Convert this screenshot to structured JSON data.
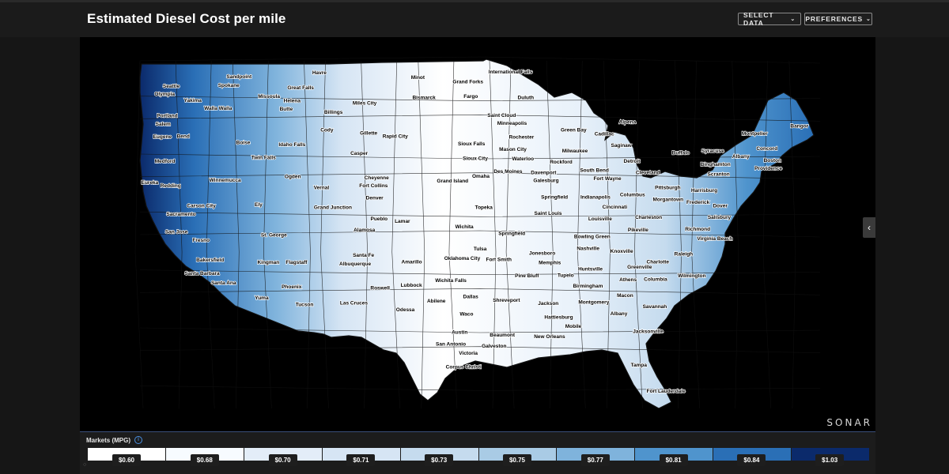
{
  "header": {
    "title": "Estimated Diesel Cost per mile",
    "select_data_label": "SELECT DATA",
    "preferences_label": "PREFERENCES",
    "chevron_icon": "chevron-down-icon"
  },
  "map": {
    "brand": "SONAR",
    "side_toggle_icon": "chevron-left-icon",
    "land_color_low": "#ffffff",
    "land_color_high": "#0a2a6c",
    "border_color": "#111111",
    "cities": [
      {
        "name": "Havre",
        "lon": -109.7,
        "lat": 48.55
      },
      {
        "name": "International Falls",
        "lon": -93.4,
        "lat": 48.6
      },
      {
        "name": "Minot",
        "lon": -101.3,
        "lat": 48.23
      },
      {
        "name": "Grand Forks",
        "lon": -97.03,
        "lat": 47.92
      },
      {
        "name": "Sandpoint",
        "lon": -116.55,
        "lat": 48.27
      },
      {
        "name": "Seattle",
        "lon": -122.33,
        "lat": 47.61
      },
      {
        "name": "Olympia",
        "lon": -122.9,
        "lat": 47.04
      },
      {
        "name": "Spokane",
        "lon": -117.43,
        "lat": 47.66
      },
      {
        "name": "Great Falls",
        "lon": -111.3,
        "lat": 47.5
      },
      {
        "name": "Bismarck",
        "lon": -100.78,
        "lat": 46.81
      },
      {
        "name": "Fargo",
        "lon": -96.79,
        "lat": 46.88
      },
      {
        "name": "Duluth",
        "lon": -92.1,
        "lat": 46.79
      },
      {
        "name": "Missoula",
        "lon": -114.0,
        "lat": 46.87
      },
      {
        "name": "Helena",
        "lon": -112.03,
        "lat": 46.59
      },
      {
        "name": "Yakima",
        "lon": -120.5,
        "lat": 46.6
      },
      {
        "name": "Walla Walla",
        "lon": -118.34,
        "lat": 46.06
      },
      {
        "name": "Miles City",
        "lon": -105.84,
        "lat": 46.41
      },
      {
        "name": "Butte",
        "lon": -112.53,
        "lat": 46.0
      },
      {
        "name": "Portland",
        "lon": -122.68,
        "lat": 45.52
      },
      {
        "name": "Salem",
        "lon": -123.03,
        "lat": 44.94
      },
      {
        "name": "Billings",
        "lon": -108.5,
        "lat": 45.78
      },
      {
        "name": "Saint Cloud",
        "lon": -94.16,
        "lat": 45.56
      },
      {
        "name": "Minneapolis",
        "lon": -93.27,
        "lat": 44.98
      },
      {
        "name": "Alpena",
        "lon": -83.43,
        "lat": 45.06
      },
      {
        "name": "Bangor",
        "lon": -68.77,
        "lat": 44.8
      },
      {
        "name": "Eugene",
        "lon": -123.09,
        "lat": 44.05
      },
      {
        "name": "Bend",
        "lon": -121.31,
        "lat": 44.06
      },
      {
        "name": "Cody",
        "lon": -109.06,
        "lat": 44.53
      },
      {
        "name": "Gillette",
        "lon": -105.5,
        "lat": 44.29
      },
      {
        "name": "Rapid City",
        "lon": -103.23,
        "lat": 44.08
      },
      {
        "name": "Rochester",
        "lon": -92.47,
        "lat": 44.02
      },
      {
        "name": "Green Bay",
        "lon": -88.02,
        "lat": 44.52
      },
      {
        "name": "Cadillac",
        "lon": -85.4,
        "lat": 44.25
      },
      {
        "name": "Montpelier",
        "lon": -72.58,
        "lat": 44.26
      },
      {
        "name": "Boise",
        "lon": -116.2,
        "lat": 43.62
      },
      {
        "name": "Idaho Falls",
        "lon": -112.03,
        "lat": 43.49
      },
      {
        "name": "Sioux Falls",
        "lon": -96.73,
        "lat": 43.55
      },
      {
        "name": "Mason City",
        "lon": -93.2,
        "lat": 43.15
      },
      {
        "name": "Milwaukee",
        "lon": -87.91,
        "lat": 43.04
      },
      {
        "name": "Saginaw",
        "lon": -83.95,
        "lat": 43.42
      },
      {
        "name": "Concord",
        "lon": -71.54,
        "lat": 43.21
      },
      {
        "name": "Syracuse",
        "lon": -76.15,
        "lat": 43.05
      },
      {
        "name": "Buffalo",
        "lon": -78.88,
        "lat": 42.89
      },
      {
        "name": "Albany",
        "lon": -73.76,
        "lat": 42.65
      },
      {
        "name": "Medford",
        "lon": -122.87,
        "lat": 42.33
      },
      {
        "name": "Twin Falls",
        "lon": -114.46,
        "lat": 42.56
      },
      {
        "name": "Casper",
        "lon": -106.31,
        "lat": 42.87
      },
      {
        "name": "Sioux City",
        "lon": -96.4,
        "lat": 42.5
      },
      {
        "name": "Waterloo",
        "lon": -92.34,
        "lat": 42.49
      },
      {
        "name": "Rockford",
        "lon": -89.09,
        "lat": 42.27
      },
      {
        "name": "Detroit",
        "lon": -83.05,
        "lat": 42.33
      },
      {
        "name": "Binghamton",
        "lon": -75.92,
        "lat": 42.1
      },
      {
        "name": "Boston",
        "lon": -71.06,
        "lat": 42.36
      },
      {
        "name": "Providence",
        "lon": -71.41,
        "lat": 41.82
      },
      {
        "name": "Winnemucca",
        "lon": -117.74,
        "lat": 40.97
      },
      {
        "name": "Ogden",
        "lon": -111.97,
        "lat": 41.22
      },
      {
        "name": "Cheyenne",
        "lon": -104.82,
        "lat": 41.14
      },
      {
        "name": "Omaha",
        "lon": -95.93,
        "lat": 41.26
      },
      {
        "name": "Des Moines",
        "lon": -93.61,
        "lat": 41.59
      },
      {
        "name": "Davenport",
        "lon": -90.58,
        "lat": 41.52
      },
      {
        "name": "South Bend",
        "lon": -86.25,
        "lat": 41.68
      },
      {
        "name": "Cleveland",
        "lon": -81.69,
        "lat": 41.5
      },
      {
        "name": "Scranton",
        "lon": -75.66,
        "lat": 41.41
      },
      {
        "name": "Eureka",
        "lon": -124.16,
        "lat": 40.8
      },
      {
        "name": "Redding",
        "lon": -122.39,
        "lat": 40.59
      },
      {
        "name": "Fort Collins",
        "lon": -105.08,
        "lat": 40.59
      },
      {
        "name": "Grand Island",
        "lon": -98.34,
        "lat": 40.92
      },
      {
        "name": "Galesburg",
        "lon": -90.37,
        "lat": 40.95
      },
      {
        "name": "Fort Wayne",
        "lon": -85.14,
        "lat": 41.08
      },
      {
        "name": "Pittsburgh",
        "lon": -79.99,
        "lat": 40.44
      },
      {
        "name": "Harrisburg",
        "lon": -76.88,
        "lat": 40.27
      },
      {
        "name": "Vernal",
        "lon": -109.53,
        "lat": 40.46
      },
      {
        "name": "Denver",
        "lon": -104.99,
        "lat": 39.74
      },
      {
        "name": "Ely",
        "lon": -114.89,
        "lat": 39.25
      },
      {
        "name": "Springfield",
        "lon": -89.65,
        "lat": 39.78
      },
      {
        "name": "Indianapolis",
        "lon": -86.16,
        "lat": 39.77
      },
      {
        "name": "Columbus",
        "lon": -83.0,
        "lat": 39.96
      },
      {
        "name": "Morgantown",
        "lon": -79.96,
        "lat": 39.63
      },
      {
        "name": "Frederick",
        "lon": -77.41,
        "lat": 39.41
      },
      {
        "name": "Dover",
        "lon": -75.52,
        "lat": 39.16
      },
      {
        "name": "Carson City",
        "lon": -119.77,
        "lat": 39.16
      },
      {
        "name": "Sacramento",
        "lon": -121.49,
        "lat": 38.58
      },
      {
        "name": "Grand Junction",
        "lon": -108.55,
        "lat": 39.06
      },
      {
        "name": "Topeka",
        "lon": -95.68,
        "lat": 39.05
      },
      {
        "name": "Saint Louis",
        "lon": -90.2,
        "lat": 38.63
      },
      {
        "name": "Cincinnati",
        "lon": -84.51,
        "lat": 39.1
      },
      {
        "name": "Charleston",
        "lon": -81.63,
        "lat": 38.35
      },
      {
        "name": "Salisbury",
        "lon": -75.6,
        "lat": 38.36
      },
      {
        "name": "San Jose",
        "lon": -121.89,
        "lat": 37.34
      },
      {
        "name": "Pueblo",
        "lon": -104.61,
        "lat": 38.25
      },
      {
        "name": "Lamar",
        "lon": -102.62,
        "lat": 38.09
      },
      {
        "name": "Wichita",
        "lon": -97.34,
        "lat": 37.69
      },
      {
        "name": "Louisville",
        "lon": -85.76,
        "lat": 38.25
      },
      {
        "name": "Pikeville",
        "lon": -82.52,
        "lat": 37.48
      },
      {
        "name": "Richmond",
        "lon": -77.44,
        "lat": 37.54
      },
      {
        "name": "Fresno",
        "lon": -119.79,
        "lat": 36.74
      },
      {
        "name": "St. George",
        "lon": -113.58,
        "lat": 37.1
      },
      {
        "name": "Alamosa",
        "lon": -105.87,
        "lat": 37.47
      },
      {
        "name": "Springfield",
        "lon": -93.29,
        "lat": 37.21
      },
      {
        "name": "Bowling Green",
        "lon": -86.44,
        "lat": 36.99
      },
      {
        "name": "Knoxville",
        "lon": -83.92,
        "lat": 35.96
      },
      {
        "name": "Virginia Beach",
        "lon": -75.98,
        "lat": 36.85
      },
      {
        "name": "Bakersfield",
        "lon": -119.02,
        "lat": 35.37
      },
      {
        "name": "Kingman",
        "lon": -114.05,
        "lat": 35.19
      },
      {
        "name": "Flagstaff",
        "lon": -111.65,
        "lat": 35.2
      },
      {
        "name": "Santa Fe",
        "lon": -105.94,
        "lat": 35.69
      },
      {
        "name": "Tulsa",
        "lon": -95.99,
        "lat": 36.15
      },
      {
        "name": "Nashville",
        "lon": -86.78,
        "lat": 36.16
      },
      {
        "name": "Raleigh",
        "lon": -78.64,
        "lat": 35.78
      },
      {
        "name": "Albuquerque",
        "lon": -106.65,
        "lat": 35.08
      },
      {
        "name": "Amarillo",
        "lon": -101.83,
        "lat": 35.22
      },
      {
        "name": "Oklahoma City",
        "lon": -97.52,
        "lat": 35.47
      },
      {
        "name": "Fort Smith",
        "lon": -94.4,
        "lat": 35.39
      },
      {
        "name": "Jonesboro",
        "lon": -90.7,
        "lat": 35.84
      },
      {
        "name": "Memphis",
        "lon": -90.05,
        "lat": 35.15
      },
      {
        "name": "Charlotte",
        "lon": -80.84,
        "lat": 35.23
      },
      {
        "name": "Santa Barbara",
        "lon": -119.7,
        "lat": 34.42
      },
      {
        "name": "Huntsville",
        "lon": -86.59,
        "lat": 34.73
      },
      {
        "name": "Greenville",
        "lon": -82.39,
        "lat": 34.85
      },
      {
        "name": "Wilmington",
        "lon": -77.94,
        "lat": 34.23
      },
      {
        "name": "Santa Ana",
        "lon": -117.87,
        "lat": 33.75
      },
      {
        "name": "Phoenix",
        "lon": -112.07,
        "lat": 33.45
      },
      {
        "name": "Roswell",
        "lon": -104.52,
        "lat": 33.39
      },
      {
        "name": "Lubbock",
        "lon": -101.86,
        "lat": 33.58
      },
      {
        "name": "Wichita Falls",
        "lon": -98.49,
        "lat": 33.91
      },
      {
        "name": "Pine Bluff",
        "lon": -92.0,
        "lat": 34.23
      },
      {
        "name": "Tupelo",
        "lon": -88.7,
        "lat": 34.26
      },
      {
        "name": "Birmingham",
        "lon": -86.8,
        "lat": 33.52
      },
      {
        "name": "Athens",
        "lon": -83.38,
        "lat": 33.96
      },
      {
        "name": "Columbia",
        "lon": -81.03,
        "lat": 34.0
      },
      {
        "name": "Yuma",
        "lon": -114.62,
        "lat": 32.69
      },
      {
        "name": "Abilene",
        "lon": -99.73,
        "lat": 32.45
      },
      {
        "name": "Dallas",
        "lon": -96.8,
        "lat": 32.78
      },
      {
        "name": "Shreveport",
        "lon": -93.75,
        "lat": 32.53
      },
      {
        "name": "Jackson",
        "lon": -90.18,
        "lat": 32.3
      },
      {
        "name": "Montgomery",
        "lon": -86.3,
        "lat": 32.37
      },
      {
        "name": "Macon",
        "lon": -83.63,
        "lat": 32.84
      },
      {
        "name": "Savannah",
        "lon": -81.1,
        "lat": 32.08
      },
      {
        "name": "Tucson",
        "lon": -110.97,
        "lat": 32.22
      },
      {
        "name": "Las Cruces",
        "lon": -106.76,
        "lat": 32.31
      },
      {
        "name": "Odessa",
        "lon": -102.37,
        "lat": 31.85
      },
      {
        "name": "Waco",
        "lon": -97.15,
        "lat": 31.55
      },
      {
        "name": "Hattiesburg",
        "lon": -89.29,
        "lat": 31.33
      },
      {
        "name": "Albany",
        "lon": -84.16,
        "lat": 31.58
      },
      {
        "name": "Austin",
        "lon": -97.74,
        "lat": 30.27
      },
      {
        "name": "Beaumont",
        "lon": -94.1,
        "lat": 30.08
      },
      {
        "name": "New Orleans",
        "lon": -90.07,
        "lat": 29.95
      },
      {
        "name": "Mobile",
        "lon": -88.04,
        "lat": 30.69
      },
      {
        "name": "Jacksonville",
        "lon": -81.66,
        "lat": 30.33
      },
      {
        "name": "San Antonio",
        "lon": -98.49,
        "lat": 29.42
      },
      {
        "name": "Galveston",
        "lon": -94.8,
        "lat": 29.3
      },
      {
        "name": "Victoria",
        "lon": -97.0,
        "lat": 28.8
      },
      {
        "name": "Tampa",
        "lon": -82.46,
        "lat": 27.95
      },
      {
        "name": "Corpus Christi",
        "lon": -97.4,
        "lat": 27.8
      },
      {
        "name": "Fort Lauderdale",
        "lon": -80.14,
        "lat": 26.12
      }
    ]
  },
  "legend": {
    "title": "Markets (MPG)",
    "info_icon": "info-icon",
    "bins": [
      {
        "label": "$0.60",
        "color": "#ffffff"
      },
      {
        "label": "$0.68",
        "color": "#f7fbff"
      },
      {
        "label": "$0.70",
        "color": "#e3edf8"
      },
      {
        "label": "$0.71",
        "color": "#d6e5f4"
      },
      {
        "label": "$0.73",
        "color": "#c5dbee"
      },
      {
        "label": "$0.75",
        "color": "#a9cbe5"
      },
      {
        "label": "$0.77",
        "color": "#7fb3dc"
      },
      {
        "label": "$0.81",
        "color": "#4f94cd"
      },
      {
        "label": "$0.84",
        "color": "#2a6fb6"
      },
      {
        "label": "$1.03",
        "color": "#0b2a6b"
      }
    ]
  }
}
